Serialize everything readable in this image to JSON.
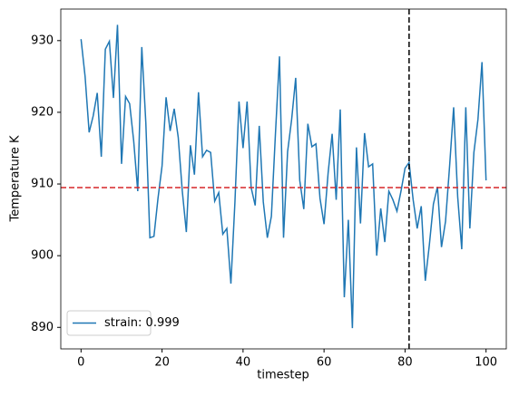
{
  "chart_data": {
    "type": "line",
    "x": [
      0,
      1,
      2,
      3,
      4,
      5,
      6,
      7,
      8,
      9,
      10,
      11,
      12,
      13,
      14,
      15,
      16,
      17,
      18,
      19,
      20,
      21,
      22,
      23,
      24,
      25,
      26,
      27,
      28,
      29,
      30,
      31,
      32,
      33,
      34,
      35,
      36,
      37,
      38,
      39,
      40,
      41,
      42,
      43,
      44,
      45,
      46,
      47,
      48,
      49,
      50,
      51,
      52,
      53,
      54,
      55,
      56,
      57,
      58,
      59,
      60,
      61,
      62,
      63,
      64,
      65,
      66,
      67,
      68,
      69,
      70,
      71,
      72,
      73,
      74,
      75,
      76,
      77,
      78,
      79,
      80,
      81,
      82,
      83,
      84,
      85,
      86,
      87,
      88,
      89,
      90,
      91,
      92,
      93,
      94,
      95,
      96,
      97,
      98,
      99,
      100
    ],
    "series": [
      {
        "name": "strain: 0.999",
        "color": "#1f77b4",
        "values": [
          930.2,
          925,
          917.2,
          919.5,
          922.7,
          913.8,
          928.8,
          929.9,
          922,
          932.2,
          912.8,
          922.2,
          921.2,
          916,
          909,
          929.1,
          918.5,
          902.5,
          902.7,
          908,
          912.5,
          922.1,
          917.4,
          920.5,
          916.5,
          909,
          903.3,
          915.4,
          911.3,
          922.8,
          913.8,
          914.7,
          914.4,
          907.6,
          908.8,
          903,
          903.8,
          896.1,
          907.5,
          921.5,
          915,
          921.5,
          909.5,
          907,
          918.1,
          907.5,
          902.5,
          905.5,
          917,
          927.8,
          902.5,
          914.5,
          919,
          924.8,
          910.5,
          906.5,
          918.4,
          915.2,
          915.6,
          908,
          904.4,
          911.5,
          917,
          907.8,
          920.4,
          894.2,
          905,
          889.9,
          915.1,
          904.5,
          917.1,
          912.4,
          912.8,
          900,
          906.6,
          901.9,
          909,
          907.8,
          906.2,
          909,
          912.2,
          913,
          907.8,
          903.8,
          906.9,
          896.5,
          901.5,
          907.2,
          909.6,
          901.2,
          904.8,
          912.5,
          920.7,
          908.2,
          900.9,
          920.7,
          903.8,
          914.4,
          919,
          927,
          910.5
        ]
      }
    ],
    "x_label": "timestep",
    "y_label": "Temperature K",
    "xlim": [
      -5,
      105
    ],
    "ylim": [
      887,
      934.4
    ],
    "xticks": [
      0,
      20,
      40,
      60,
      80,
      100
    ],
    "yticks": [
      890,
      900,
      910,
      920,
      930
    ],
    "hline": {
      "value": 909.5,
      "color": "#d62728"
    },
    "vline": {
      "value": 81,
      "color": "#000000"
    },
    "legend": "lower left"
  }
}
